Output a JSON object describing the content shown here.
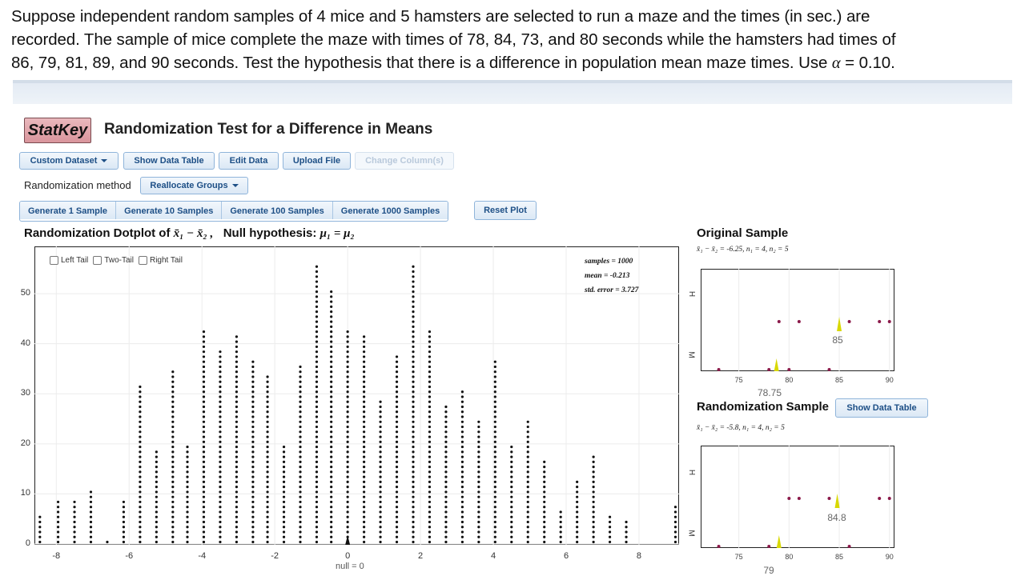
{
  "problem": {
    "line1": "Suppose independent random samples of 4 mice and 5 hamsters are selected to run a maze and the times (in sec.) are",
    "line2": "recorded.  The sample of mice complete the maze with times of 78, 84, 73, and 80 seconds while the hamsters had times of",
    "line3_pre": "86, 79, 81, 89, and 90 seconds. Test the hypothesis that there is a difference in population mean maze times.  Use ",
    "alpha_symbol": "α",
    "line3_post": " = 0.10."
  },
  "app": {
    "logo": "StatKey",
    "title": "Randomization Test for a Difference in Means"
  },
  "toolbar": {
    "custom_dataset": "Custom Dataset",
    "show_data_table": "Show Data Table",
    "edit_data": "Edit Data",
    "upload_file": "Upload File",
    "change_columns": "Change Column(s)"
  },
  "randomization": {
    "label": "Randomization method",
    "method": "Reallocate Groups"
  },
  "generate": {
    "g1": "Generate 1 Sample",
    "g10": "Generate 10 Samples",
    "g100": "Generate 100 Samples",
    "g1000": "Generate 1000 Samples",
    "reset": "Reset Plot"
  },
  "dotplot": {
    "title_pre": "Randomization Dotplot of ",
    "title_stat": "x̄₁ − x̄₂ ,",
    "title_null": "Null hypothesis: ",
    "title_null_expr": "μ₁ = μ₂",
    "tails": {
      "left": "Left Tail",
      "two": "Two-Tail",
      "right": "Right Tail"
    },
    "stats": {
      "samples": "samples = 1000",
      "mean": "mean = -0.213",
      "se": "std. error = 3.727"
    },
    "null_label": "null = 0",
    "dot_color": "#111111"
  },
  "chart_data": {
    "type": "scatter",
    "description_kind": "dotplot",
    "x": [
      -8.45,
      -7.95,
      -7.5,
      -7.05,
      -6.6,
      -6.15,
      -5.7,
      -5.25,
      -4.8,
      -4.4,
      -3.95,
      -3.5,
      -3.05,
      -2.6,
      -2.2,
      -1.75,
      -1.3,
      -0.85,
      -0.45,
      0.0,
      0.45,
      0.9,
      1.35,
      1.8,
      2.25,
      2.7,
      3.15,
      3.6,
      4.05,
      4.5,
      4.95,
      5.4,
      5.85,
      6.3,
      6.75,
      7.2,
      7.65,
      8.1,
      8.55,
      9.0
    ],
    "y": [
      6,
      9,
      9,
      11,
      1,
      9,
      32,
      19,
      35,
      20,
      43,
      39,
      42,
      37,
      34,
      20,
      36,
      56,
      51,
      43,
      42,
      29,
      38,
      56,
      43,
      28,
      31,
      25,
      37,
      20,
      25,
      17,
      7,
      13,
      18,
      6,
      5,
      0,
      0,
      8
    ],
    "xlim": [
      -8.6,
      9.1
    ],
    "ylim": [
      0,
      58
    ],
    "x_ticks": [
      "-8",
      "-6",
      "-4",
      "-2",
      "0",
      "2",
      "4",
      "6",
      "8"
    ],
    "y_ticks": [
      "0",
      "10",
      "20",
      "30",
      "40",
      "50"
    ],
    "grid": true
  },
  "original": {
    "title": "Original Sample",
    "subtitle": "x̄₁ − x̄₂ = -6.25, n₁ = 4, n₂ = 5",
    "group_top": "H",
    "group_bottom": "M",
    "ticks": [
      "75",
      "80",
      "85",
      "90"
    ],
    "h_values": [
      79,
      81,
      86,
      89,
      90
    ],
    "m_values": [
      73,
      78,
      80,
      84
    ],
    "h_mean": "85",
    "m_mean": "78.75"
  },
  "randsample": {
    "title": "Randomization Sample",
    "show_table": "Show Data Table",
    "subtitle": "x̄₁ − x̄₂ = -5.8, n₁ = 4, n₂ = 5",
    "group_top": "H",
    "group_bottom": "M",
    "ticks": [
      "75",
      "80",
      "85",
      "90"
    ],
    "h_values": [
      80,
      81,
      84,
      89,
      90
    ],
    "m_values": [
      73,
      78,
      79,
      86
    ],
    "h_mean": "84.8",
    "m_mean": "79"
  },
  "colors": {
    "point": "#8b1a4a",
    "mean_marker": "#d8d800",
    "accent": "#1d4f86"
  }
}
